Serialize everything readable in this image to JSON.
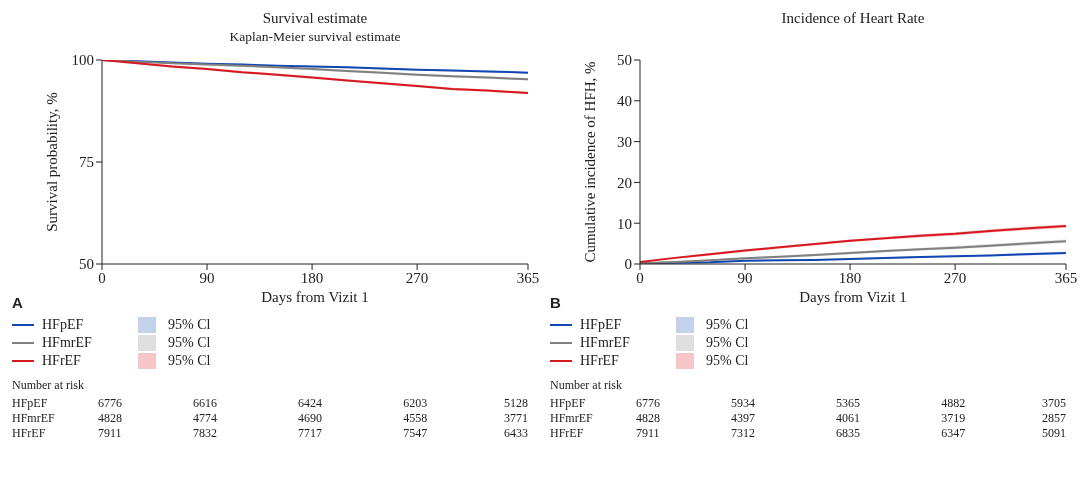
{
  "chart_data": [
    {
      "type": "line",
      "title": "Survival estimate",
      "subtitle": "Kaplan-Meier survival estimate",
      "xlabel": "Days from Vizit 1",
      "ylabel": "Survival probability, %",
      "x": [
        0,
        30,
        60,
        90,
        120,
        150,
        180,
        210,
        240,
        270,
        300,
        330,
        365
      ],
      "xlim": [
        0,
        365
      ],
      "xticks": [
        0,
        90,
        180,
        270,
        365
      ],
      "ylim": [
        50,
        100
      ],
      "yticks": [
        50,
        75,
        100
      ],
      "legend": "bottom",
      "series": [
        {
          "name": "HFpEF",
          "color": "#1346b0",
          "values": [
            100,
            99.7,
            99.4,
            99.1,
            98.9,
            98.6,
            98.4,
            98.2,
            97.9,
            97.6,
            97.4,
            97.2,
            96.9
          ],
          "lower": [
            100,
            99.6,
            99.3,
            99.0,
            98.7,
            98.4,
            98.2,
            98.0,
            97.7,
            97.4,
            97.2,
            97.0,
            96.7
          ],
          "upper": [
            100,
            99.8,
            99.5,
            99.2,
            99.1,
            98.8,
            98.6,
            98.4,
            98.1,
            97.8,
            97.6,
            97.4,
            97.1
          ]
        },
        {
          "name": "HFmrEF",
          "color": "#808080",
          "values": [
            100,
            99.6,
            99.2,
            98.9,
            98.6,
            98.2,
            97.8,
            97.3,
            96.9,
            96.4,
            96.0,
            95.7,
            95.3
          ],
          "lower": [
            100,
            99.4,
            99.0,
            98.6,
            98.3,
            97.9,
            97.5,
            97.0,
            96.6,
            96.1,
            95.7,
            95.4,
            95.0
          ],
          "upper": [
            100,
            99.8,
            99.4,
            99.2,
            98.9,
            98.5,
            98.1,
            97.6,
            97.2,
            96.7,
            96.3,
            96.0,
            95.6
          ]
        },
        {
          "name": "HFrEF",
          "color": "#d7191f",
          "values": [
            100,
            99.2,
            98.4,
            97.8,
            97.0,
            96.4,
            95.7,
            95.0,
            94.3,
            93.6,
            92.9,
            92.5,
            91.9
          ],
          "lower": [
            100,
            99.0,
            98.1,
            97.5,
            96.7,
            96.1,
            95.4,
            94.7,
            94.0,
            93.3,
            92.6,
            92.2,
            91.6
          ],
          "upper": [
            100,
            99.4,
            98.7,
            98.1,
            97.3,
            96.7,
            96.0,
            95.3,
            94.6,
            93.9,
            93.2,
            92.8,
            92.2
          ]
        }
      ],
      "annotations": [
        "A",
        "95% Cl",
        "95% Cl",
        "95% Cl",
        "Number at risk",
        "HFpEF",
        "6776",
        "6616",
        "6424",
        "6203",
        "5128",
        "HFmrEF",
        "4828",
        "4774",
        "4690",
        "4558",
        "3771",
        "HFrEF",
        "7911",
        "7832",
        "7717",
        "7547",
        "6433"
      ]
    },
    {
      "type": "line",
      "title": "Incidence of Heart Rate",
      "xlabel": "Days from Vizit 1",
      "ylabel": "Cumulative incidence of HFH, %",
      "x": [
        0,
        30,
        60,
        90,
        120,
        150,
        180,
        210,
        240,
        270,
        300,
        330,
        365
      ],
      "xlim": [
        0,
        365
      ],
      "xticks": [
        0,
        90,
        180,
        270,
        365
      ],
      "ylim": [
        0,
        50
      ],
      "yticks": [
        0,
        10,
        20,
        30,
        40,
        50
      ],
      "legend": "bottom",
      "series": [
        {
          "name": "HFpEF",
          "color": "#1346b0",
          "values": [
            0.2,
            0.3,
            0.4,
            0.8,
            0.9,
            1.0,
            1.2,
            1.5,
            1.7,
            1.9,
            2.1,
            2.4,
            2.7
          ],
          "lower": [
            0.1,
            0.2,
            0.3,
            0.6,
            0.7,
            0.8,
            1.0,
            1.3,
            1.5,
            1.7,
            1.9,
            2.1,
            2.4
          ],
          "upper": [
            0.3,
            0.4,
            0.5,
            1.0,
            1.1,
            1.2,
            1.4,
            1.7,
            1.9,
            2.1,
            2.3,
            2.7,
            3.0
          ]
        },
        {
          "name": "HFmrEF",
          "color": "#808080",
          "values": [
            0.2,
            0.5,
            0.9,
            1.4,
            1.8,
            2.2,
            2.7,
            3.2,
            3.6,
            4.0,
            4.5,
            5.0,
            5.6
          ],
          "lower": [
            0.1,
            0.3,
            0.7,
            1.1,
            1.5,
            1.9,
            2.4,
            2.9,
            3.3,
            3.6,
            4.1,
            4.6,
            5.2
          ],
          "upper": [
            0.3,
            0.7,
            1.1,
            1.7,
            2.1,
            2.5,
            3.0,
            3.5,
            3.9,
            4.4,
            4.9,
            5.4,
            6.0
          ]
        },
        {
          "name": "HFrEF",
          "color": "#d7191f",
          "values": [
            0.5,
            1.5,
            2.4,
            3.3,
            4.1,
            4.9,
            5.7,
            6.3,
            6.9,
            7.4,
            8.1,
            8.7,
            9.3
          ],
          "lower": [
            0.4,
            1.3,
            2.1,
            3.0,
            3.8,
            4.6,
            5.4,
            6.0,
            6.5,
            7.0,
            7.7,
            8.3,
            8.9
          ],
          "upper": [
            0.6,
            1.7,
            2.7,
            3.6,
            4.4,
            5.2,
            6.0,
            6.6,
            7.3,
            7.8,
            8.5,
            9.1,
            9.7
          ]
        }
      ],
      "annotations": [
        "B",
        "95% Cl",
        "95% Cl",
        "95% Cl",
        "Number at risk",
        "HFpEF",
        "6776",
        "5934",
        "5365",
        "4882",
        "3705",
        "HFmrEF",
        "4828",
        "4397",
        "4061",
        "3719",
        "2857",
        "HFrEF",
        "7911",
        "7312",
        "6835",
        "6347",
        "5091"
      ]
    }
  ]
}
